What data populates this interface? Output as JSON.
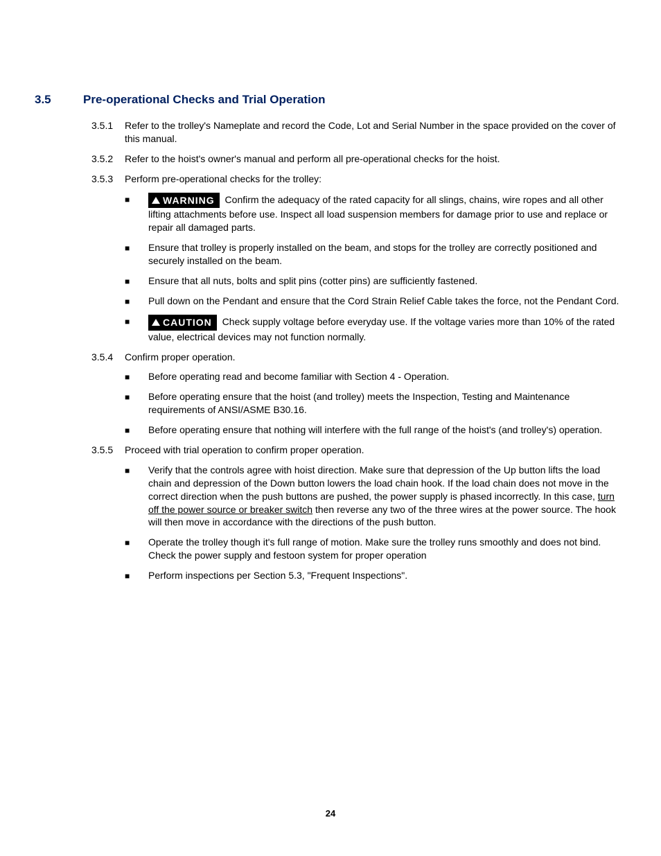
{
  "colors": {
    "heading": "#002060",
    "text": "#000000",
    "label_bg": "#000000",
    "label_fg": "#ffffff",
    "page_bg": "#ffffff"
  },
  "typography": {
    "heading_fontsize_pt": 13,
    "body_fontsize_pt": 10.5,
    "font_family": "Arial"
  },
  "section": {
    "number": "3.5",
    "title": "Pre-operational Checks and Trial Operation"
  },
  "labels": {
    "warning": "WARNING",
    "caution": "CAUTION"
  },
  "bullet_glyph": "■",
  "items": {
    "i1": {
      "num": "3.5.1",
      "text": "Refer to the trolley's Nameplate and record the Code, Lot and Serial Number in the space provided on the cover of this manual."
    },
    "i2": {
      "num": "3.5.2",
      "text": "Refer to the hoist's owner's manual and perform all pre-operational checks for the hoist."
    },
    "i3": {
      "num": "3.5.3",
      "text": "Perform pre-operational checks for the trolley:",
      "b1_after": " Confirm the adequacy of the rated capacity for all slings, chains, wire ropes and all other lifting attachments before use.  Inspect all load suspension members for damage prior to use and replace or repair all damaged parts.",
      "b2": "Ensure that trolley is properly installed on the beam, and stops for the trolley are correctly positioned and securely installed on the beam.",
      "b3": "Ensure that all nuts, bolts and split pins (cotter pins) are sufficiently fastened.",
      "b4": "Pull down on the Pendant and ensure that the Cord Strain Relief Cable takes the force, not the Pendant Cord.",
      "b5_after": " Check supply voltage before everyday use.  If the voltage varies more than 10% of the rated value, electrical devices may not function normally."
    },
    "i4": {
      "num": "3.5.4",
      "text": "Confirm proper operation.",
      "b1_a": "Before operating read and become familiar with ",
      "b1_ref": "Section 4",
      "b1_b": " - Operation.",
      "b2": "Before operating ensure that the hoist (and trolley) meets the Inspection, Testing and Maintenance requirements of ANSI/ASME B30.16.",
      "b3": "Before operating ensure that nothing will interfere with the full range of the hoist's (and trolley's) operation."
    },
    "i5": {
      "num": "3.5.5",
      "text": "Proceed with trial operation to confirm proper operation.",
      "b1_a": "Verify that the controls agree with hoist direction.  Make sure that depression of the Up button lifts the load chain and depression of the Down button lowers the load chain hook.  If the load chain does not move in the correct direction when the push buttons are pushed, the power supply is phased incorrectly.  In this case, ",
      "b1_u": "turn off the power source or breaker switch",
      "b1_b": " then reverse any two of the three wires at the power source. The hook will then move in accordance with the directions of the push button.",
      "b2": "Operate the trolley though it's full range of motion.  Make sure the trolley runs smoothly and does not bind.  Check the power supply and festoon system for proper operation",
      "b3_a": "Perform inspections per ",
      "b3_ref": "Section 5.3",
      "b3_b": ", \"Frequent Inspections\"."
    }
  },
  "page_number": "24"
}
